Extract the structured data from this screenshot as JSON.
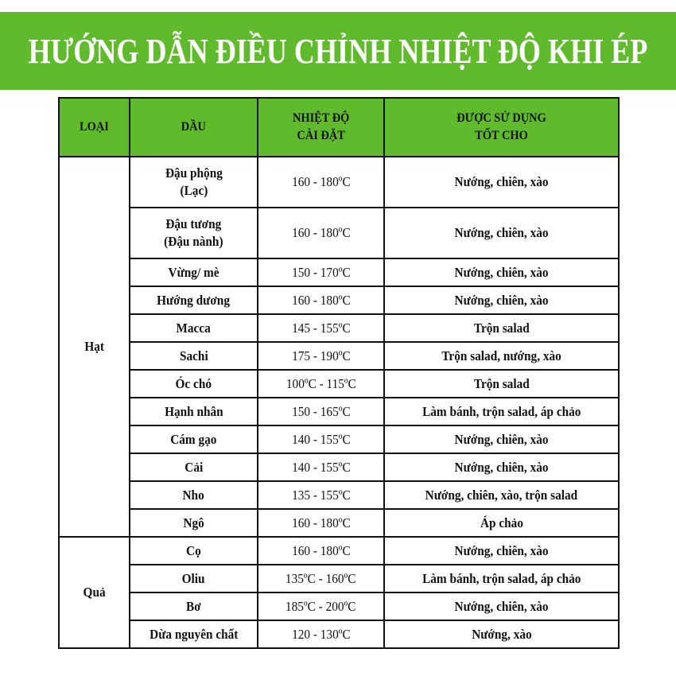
{
  "title": "HƯỚNG DẪN ĐIỀU CHỈNH NHIỆT ĐỘ KHI ÉP",
  "colors": {
    "accent_green": "#5fbb2b",
    "border": "#111111"
  },
  "headers": [
    "LOẠI",
    "DẦU",
    "NHIỆT ĐỘ\nCÀI ĐẶT",
    "ĐƯỢC SỬ DỤNG\nTỐT CHO"
  ],
  "groups": [
    {
      "category": "Hạt",
      "rows": [
        {
          "oil": "Đậu phộng\n(Lạc)",
          "temp": "160 - 180ºC",
          "use": "Nướng, chiên, xào"
        },
        {
          "oil": "Đậu tương\n(Đậu nành)",
          "temp": "160 - 180ºC",
          "use": "Nướng, chiên, xào"
        },
        {
          "oil": "Vừng/ mè",
          "temp": "150 - 170ºC",
          "use": "Nướng, chiên, xào"
        },
        {
          "oil": "Hướng dương",
          "temp": "160 - 180ºC",
          "use": "Nướng, chiên, xào"
        },
        {
          "oil": "Macca",
          "temp": "145 - 155ºC",
          "use": "Trộn salad"
        },
        {
          "oil": "Sachi",
          "temp": "175 - 190ºC",
          "use": "Trộn salad, nướng, xào"
        },
        {
          "oil": "Óc chó",
          "temp": "100ºC - 115ºC",
          "use": "Trộn salad"
        },
        {
          "oil": "Hạnh nhân",
          "temp": "150 - 165ºC",
          "use": "Làm bánh, trộn salad, áp chảo"
        },
        {
          "oil": "Cám gạo",
          "temp": "140 - 155ºC",
          "use": "Nướng, chiên, xào"
        },
        {
          "oil": "Cải",
          "temp": "140 - 155ºC",
          "use": "Nướng, chiên, xào"
        },
        {
          "oil": "Nho",
          "temp": "135 - 155ºC",
          "use": "Nướng, chiên, xào, trộn salad"
        },
        {
          "oil": "Ngô",
          "temp": "160 - 180ºC",
          "use": "Áp chảo"
        }
      ]
    },
    {
      "category": "Quả",
      "rows": [
        {
          "oil": "Cọ",
          "temp": "160 - 180ºC",
          "use": "Nướng, chiên, xào"
        },
        {
          "oil": "Oliu",
          "temp": "135ºC - 160ºC",
          "use": "Làm bánh, trộn salad, áp chảo"
        },
        {
          "oil": "Bơ",
          "temp": "185ºC - 200ºC",
          "use": "Nướng, chiên, xào"
        },
        {
          "oil": "Dừa nguyên chất",
          "temp": "120 - 130ºC",
          "use": "Nướng, xào"
        }
      ]
    }
  ]
}
